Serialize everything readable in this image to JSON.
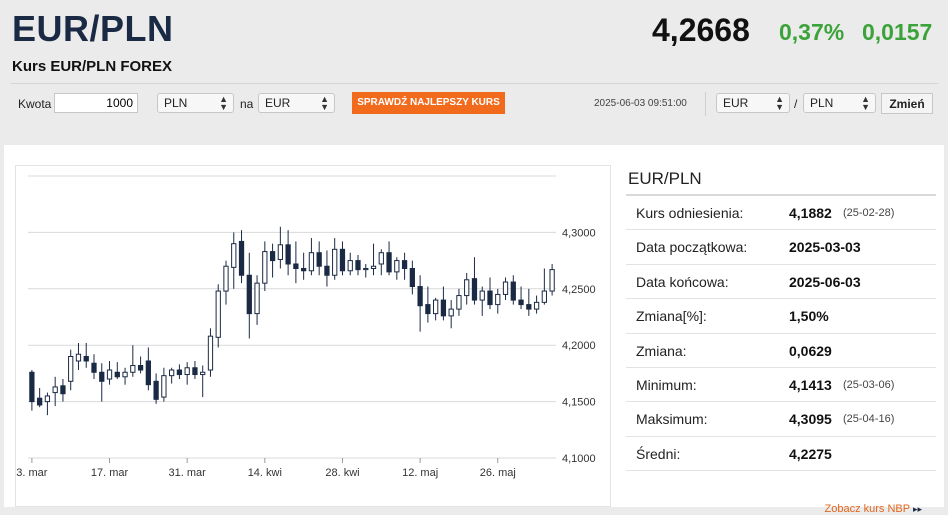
{
  "header": {
    "pair": "EUR/PLN",
    "subtitle": "Kurs EUR/PLN FOREX",
    "price": "4,2668",
    "change_pct": "0,37%",
    "change_abs": "0,0157"
  },
  "converter": {
    "amount_label": "Kwota",
    "amount_value": "1000",
    "from_currency": "PLN",
    "na_label": "na",
    "to_currency": "EUR",
    "best_rate_button": "SPRAWDŹ NAJLEPSZY KURS",
    "timestamp": "2025-06-03 09:51:00",
    "pair_base": "EUR",
    "pair_slash": "/",
    "pair_quote": "PLN",
    "change_button": "Zmień"
  },
  "info": {
    "title": "EUR/PLN",
    "rows": [
      {
        "label": "Kurs odniesienia:",
        "value": "4,1882",
        "date": "(25-02-28)"
      },
      {
        "label": "Data początkowa:",
        "value": "2025-03-03",
        "date": ""
      },
      {
        "label": "Data końcowa:",
        "value": "2025-06-03",
        "date": ""
      },
      {
        "label": "Zmiana[%]:",
        "value": "1,50%",
        "date": ""
      },
      {
        "label": "Zmiana:",
        "value": "0,0629",
        "date": ""
      },
      {
        "label": "Minimum:",
        "value": "4,1413",
        "date": "(25-03-06)"
      },
      {
        "label": "Maksimum:",
        "value": "4,3095",
        "date": "(25-04-16)"
      },
      {
        "label": "Średni:",
        "value": "4,2275",
        "date": ""
      }
    ],
    "nbp_link": "Zobacz kurs NBP",
    "nbp_arrow": "▸▸"
  },
  "colors": {
    "up": "#3ca33a",
    "accent": "#f26b1d",
    "candle_bear": "#1b2a44",
    "candle_bull": "#ffffff"
  },
  "chart_data": {
    "type": "candlestick",
    "y_tick_labels": [
      "4,3000",
      "4,2500",
      "4,2000",
      "4,1500",
      "4,1000"
    ],
    "y_ticks": [
      4.3,
      4.25,
      4.2,
      4.15,
      4.1
    ],
    "ylim": [
      4.1,
      4.35
    ],
    "x_tick_labels": [
      "3. mar",
      "17. mar",
      "31. mar",
      "14. kwi",
      "28. kwi",
      "12. maj",
      "26. maj"
    ],
    "x_tick_index": [
      0,
      10,
      20,
      30,
      40,
      50,
      60
    ],
    "grid": true,
    "ohlc": [
      [
        4.176,
        4.178,
        4.142,
        4.15
      ],
      [
        4.153,
        4.162,
        4.145,
        4.147
      ],
      [
        4.15,
        4.158,
        4.138,
        4.155
      ],
      [
        4.158,
        4.172,
        4.146,
        4.163
      ],
      [
        4.164,
        4.17,
        4.15,
        4.157
      ],
      [
        4.168,
        4.196,
        4.16,
        4.19
      ],
      [
        4.186,
        4.202,
        4.178,
        4.192
      ],
      [
        4.19,
        4.202,
        4.18,
        4.186
      ],
      [
        4.184,
        4.192,
        4.17,
        4.176
      ],
      [
        4.176,
        4.184,
        4.15,
        4.168
      ],
      [
        4.17,
        4.186,
        4.165,
        4.178
      ],
      [
        4.176,
        4.185,
        4.17,
        4.172
      ],
      [
        4.172,
        4.18,
        4.165,
        4.176
      ],
      [
        4.176,
        4.2,
        4.172,
        4.182
      ],
      [
        4.182,
        4.19,
        4.175,
        4.178
      ],
      [
        4.186,
        4.198,
        4.16,
        4.165
      ],
      [
        4.168,
        4.175,
        4.148,
        4.152
      ],
      [
        4.154,
        4.18,
        4.15,
        4.173
      ],
      [
        4.173,
        4.18,
        4.166,
        4.178
      ],
      [
        4.178,
        4.183,
        4.17,
        4.174
      ],
      [
        4.174,
        4.185,
        4.165,
        4.18
      ],
      [
        4.18,
        4.186,
        4.17,
        4.174
      ],
      [
        4.174,
        4.182,
        4.154,
        4.176
      ],
      [
        4.178,
        4.215,
        4.172,
        4.208
      ],
      [
        4.207,
        4.254,
        4.198,
        4.248
      ],
      [
        4.248,
        4.275,
        4.236,
        4.27
      ],
      [
        4.269,
        4.3,
        4.25,
        4.29
      ],
      [
        4.292,
        4.302,
        4.255,
        4.262
      ],
      [
        4.262,
        4.282,
        4.206,
        4.228
      ],
      [
        4.228,
        4.262,
        4.218,
        4.255
      ],
      [
        4.255,
        4.292,
        4.248,
        4.283
      ],
      [
        4.283,
        4.29,
        4.26,
        4.275
      ],
      [
        4.276,
        4.305,
        4.268,
        4.289
      ],
      [
        4.289,
        4.302,
        4.262,
        4.272
      ],
      [
        4.272,
        4.292,
        4.255,
        4.268
      ],
      [
        4.268,
        4.282,
        4.258,
        4.266
      ],
      [
        4.266,
        4.295,
        4.262,
        4.282
      ],
      [
        4.282,
        4.292,
        4.262,
        4.27
      ],
      [
        4.27,
        4.284,
        4.252,
        4.262
      ],
      [
        4.262,
        4.295,
        4.258,
        4.285
      ],
      [
        4.285,
        4.292,
        4.262,
        4.266
      ],
      [
        4.266,
        4.282,
        4.262,
        4.275
      ],
      [
        4.275,
        4.28,
        4.262,
        4.267
      ],
      [
        4.267,
        4.272,
        4.26,
        4.268
      ],
      [
        4.268,
        4.29,
        4.262,
        4.27
      ],
      [
        4.272,
        4.285,
        4.262,
        4.282
      ],
      [
        4.282,
        4.292,
        4.262,
        4.265
      ],
      [
        4.265,
        4.278,
        4.258,
        4.275
      ],
      [
        4.275,
        4.282,
        4.258,
        4.268
      ],
      [
        4.268,
        4.275,
        4.245,
        4.252
      ],
      [
        4.252,
        4.262,
        4.212,
        4.235
      ],
      [
        4.236,
        4.252,
        4.22,
        4.228
      ],
      [
        4.228,
        4.242,
        4.222,
        4.24
      ],
      [
        4.24,
        4.252,
        4.222,
        4.226
      ],
      [
        4.226,
        4.24,
        4.215,
        4.232
      ],
      [
        4.232,
        4.25,
        4.226,
        4.244
      ],
      [
        4.244,
        4.264,
        4.236,
        4.258
      ],
      [
        4.259,
        4.278,
        4.236,
        4.24
      ],
      [
        4.24,
        4.252,
        4.226,
        4.248
      ],
      [
        4.248,
        4.26,
        4.232,
        4.236
      ],
      [
        4.236,
        4.25,
        4.228,
        4.245
      ],
      [
        4.245,
        4.26,
        4.24,
        4.256
      ],
      [
        4.256,
        4.262,
        4.236,
        4.24
      ],
      [
        4.24,
        4.252,
        4.232,
        4.236
      ],
      [
        4.236,
        4.25,
        4.226,
        4.232
      ],
      [
        4.232,
        4.244,
        4.228,
        4.238
      ],
      [
        4.238,
        4.268,
        4.236,
        4.248
      ],
      [
        4.248,
        4.272,
        4.244,
        4.267
      ]
    ]
  }
}
